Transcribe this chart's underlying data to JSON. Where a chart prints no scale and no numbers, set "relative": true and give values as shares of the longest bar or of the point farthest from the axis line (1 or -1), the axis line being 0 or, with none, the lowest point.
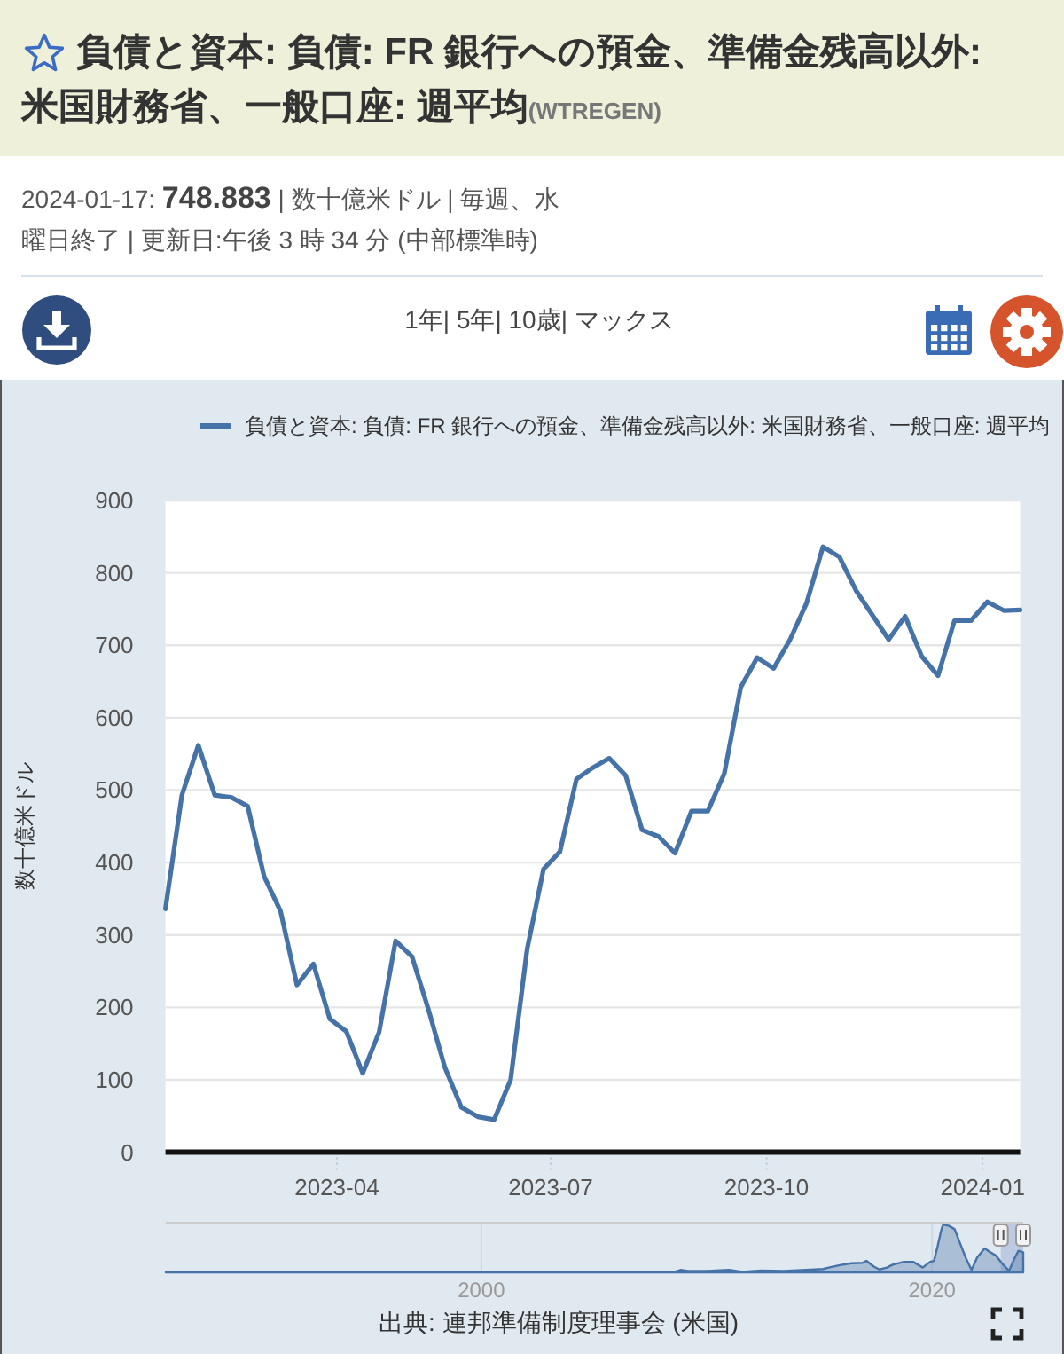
{
  "chart_data": [
    {
      "type": "line",
      "title": "負債と資本: 負債: FR 銀行への預金、準備金残高以外: 米国財務省、一般口座: 週平均(WTREGEN)",
      "subtitle": "2024-01-17: 748.883 | 数十億米ドル | 毎週、水曜日終了 | 更新日:午後 3 時 34 分 (中部標準時)",
      "ylabel": "数十億米ドル",
      "annotations": [
        "1年| 5年| 10歳| マックス",
        "出典: 連邦準備制度理事会 (米国)"
      ],
      "x": [
        "2023-01-18",
        "2023-01-25",
        "2023-02-01",
        "2023-02-08",
        "2023-02-15",
        "2023-02-22",
        "2023-03-01",
        "2023-03-08",
        "2023-03-15",
        "2023-03-22",
        "2023-03-29",
        "2023-04-05",
        "2023-04-12",
        "2023-04-19",
        "2023-04-26",
        "2023-05-03",
        "2023-05-10",
        "2023-05-17",
        "2023-05-24",
        "2023-05-31",
        "2023-06-07",
        "2023-06-14",
        "2023-06-21",
        "2023-06-28",
        "2023-07-05",
        "2023-07-12",
        "2023-07-19",
        "2023-07-26",
        "2023-08-02",
        "2023-08-09",
        "2023-08-16",
        "2023-08-23",
        "2023-08-30",
        "2023-09-06",
        "2023-09-13",
        "2023-09-20",
        "2023-09-27",
        "2023-10-04",
        "2023-10-11",
        "2023-10-18",
        "2023-10-25",
        "2023-11-01",
        "2023-11-08",
        "2023-11-15",
        "2023-11-22",
        "2023-11-29",
        "2023-12-06",
        "2023-12-13",
        "2023-12-20",
        "2023-12-27",
        "2024-01-03",
        "2024-01-10",
        "2024-01-17"
      ],
      "series": [
        {
          "name": "負債と資本: 負債: FR 銀行への預金、準備金残高以外: 米国財務省、一般口座: 週平均",
          "color": "#4572a7",
          "values": [
            336,
            493,
            562,
            493,
            490,
            478,
            381,
            333,
            231,
            260,
            184,
            167,
            109,
            166,
            292,
            270,
            197,
            117,
            62,
            49,
            45,
            100,
            280,
            391,
            415,
            515,
            531,
            544,
            520,
            445,
            436,
            413,
            471,
            471,
            523,
            642,
            683,
            668,
            708,
            758,
            836,
            822,
            776,
            742,
            708,
            740,
            685,
            658,
            734,
            734,
            760,
            748,
            748.883
          ]
        }
      ],
      "xlim": [
        "2023-01-18",
        "2024-01-17"
      ],
      "xticks": [
        "2023-04",
        "2023-07",
        "2023-10",
        "2024-01"
      ],
      "ylim": [
        0,
        900
      ],
      "yticks": [
        0,
        100,
        200,
        300,
        400,
        500,
        600,
        700,
        800,
        900
      ],
      "grid": "y",
      "legend": "top"
    },
    {
      "type": "area",
      "relative": true,
      "color": "#4572a7",
      "x": [
        "1986-01",
        "1990-01",
        "1995-01",
        "2000-01",
        "2005-01",
        "2008-08",
        "2008-11",
        "2009-03",
        "2010-01",
        "2011-01",
        "2011-08",
        "2012-06",
        "2013-06",
        "2014-06",
        "2015-03",
        "2015-06",
        "2015-12",
        "2016-06",
        "2016-12",
        "2017-02",
        "2017-06",
        "2017-09",
        "2018-01",
        "2018-04",
        "2018-10",
        "2019-03",
        "2019-08",
        "2019-12",
        "2020-02",
        "2020-04",
        "2020-06",
        "2020-07",
        "2020-10",
        "2021-01",
        "2021-04",
        "2021-07",
        "2021-10",
        "2022-01",
        "2022-05",
        "2022-08",
        "2022-11",
        "2023-02",
        "2023-06",
        "2023-09",
        "2023-11",
        "2024-01-17"
      ],
      "values": [
        0.01,
        0.01,
        0.01,
        0.01,
        0.01,
        0.01,
        0.05,
        0.03,
        0.03,
        0.05,
        0.01,
        0.04,
        0.03,
        0.05,
        0.07,
        0.1,
        0.15,
        0.19,
        0.2,
        0.24,
        0.12,
        0.06,
        0.1,
        0.16,
        0.22,
        0.22,
        0.1,
        0.22,
        0.24,
        0.55,
        0.9,
        1,
        0.97,
        0.9,
        0.6,
        0.3,
        0.05,
        0.31,
        0.5,
        0.42,
        0.35,
        0.2,
        0.03,
        0.3,
        0.45,
        0.42
      ],
      "xlim": [
        "1986-01",
        "2024-01-17"
      ],
      "xticks": [
        "2000",
        "2020"
      ],
      "bands": [
        {
          "axis": "x",
          "from": "2023-01-18",
          "to": "2024-01-17",
          "color": "#6685c2"
        }
      ]
    }
  ]
}
